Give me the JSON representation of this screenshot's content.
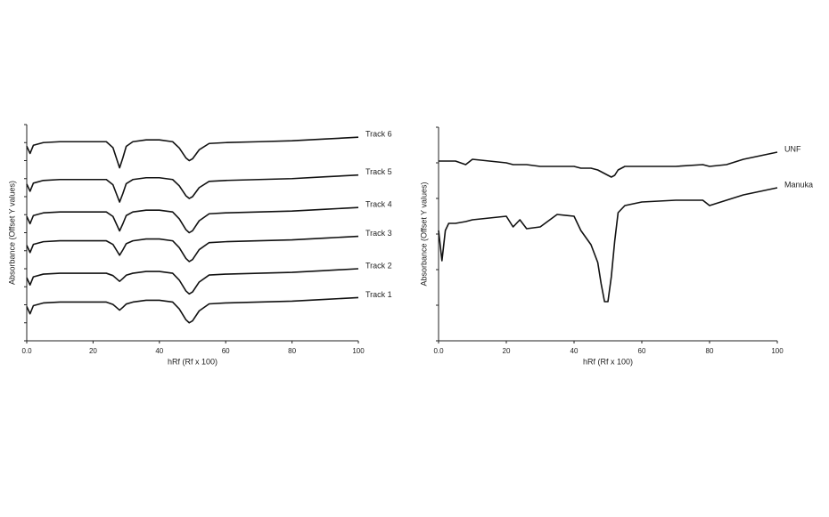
{
  "chart_data": [
    {
      "type": "line",
      "y_label": "Absorbance (Offset Y values)",
      "x_label": "hRf (Rf x 100)",
      "x": [
        0,
        1,
        2,
        5,
        10,
        15,
        20,
        24,
        26,
        27,
        28,
        29,
        30,
        32,
        36,
        40,
        44,
        46,
        48,
        49,
        50,
        52,
        55,
        60,
        70,
        80,
        90,
        100
      ],
      "xlim": [
        0,
        100
      ],
      "xticks": [
        {
          "value": 0,
          "label": "0.0"
        },
        20,
        40,
        60,
        80,
        100
      ],
      "ylim": [
        0,
        12
      ],
      "yticks": [
        0,
        1,
        2,
        3,
        4,
        5,
        6,
        7,
        8,
        9,
        10,
        11,
        12
      ],
      "series": [
        {
          "name": "Track 6",
          "color": "#111111",
          "values": [
            10.8,
            10.4,
            10.85,
            11.0,
            11.05,
            11.05,
            11.05,
            11.05,
            10.72,
            10.16,
            9.6,
            10.16,
            10.79,
            11.05,
            11.15,
            11.15,
            11.05,
            10.7,
            10.15,
            10.0,
            10.1,
            10.6,
            10.95,
            11.0,
            11.05,
            11.1,
            11.2,
            11.3
          ]
        },
        {
          "name": "Track 5",
          "color": "#111111",
          "values": [
            8.7,
            8.3,
            8.75,
            8.9,
            8.95,
            8.95,
            8.95,
            8.95,
            8.66,
            8.18,
            7.7,
            8.18,
            8.72,
            8.95,
            9.05,
            9.05,
            8.95,
            8.6,
            8.05,
            7.9,
            8.0,
            8.5,
            8.85,
            8.9,
            8.95,
            9.0,
            9.1,
            9.2
          ]
        },
        {
          "name": "Track 4",
          "color": "#111111",
          "values": [
            6.9,
            6.5,
            6.95,
            7.1,
            7.15,
            7.15,
            7.15,
            7.15,
            6.9,
            6.5,
            6.1,
            6.5,
            6.95,
            7.15,
            7.25,
            7.25,
            7.15,
            6.77,
            6.17,
            6.0,
            6.11,
            6.66,
            7.05,
            7.1,
            7.15,
            7.2,
            7.3,
            7.4
          ]
        },
        {
          "name": "Track 3",
          "color": "#111111",
          "values": [
            5.3,
            4.9,
            5.35,
            5.5,
            5.55,
            5.55,
            5.55,
            5.55,
            5.35,
            5.05,
            4.75,
            5.05,
            5.39,
            5.55,
            5.65,
            5.65,
            5.55,
            5.17,
            4.57,
            4.4,
            4.51,
            5.06,
            5.45,
            5.5,
            5.55,
            5.6,
            5.7,
            5.8
          ]
        },
        {
          "name": "Track 2",
          "color": "#111111",
          "values": [
            3.5,
            3.1,
            3.55,
            3.7,
            3.75,
            3.75,
            3.75,
            3.75,
            3.62,
            3.46,
            3.3,
            3.46,
            3.64,
            3.75,
            3.85,
            3.85,
            3.75,
            3.37,
            2.77,
            2.6,
            2.71,
            3.26,
            3.65,
            3.7,
            3.75,
            3.8,
            3.9,
            4.0
          ]
        },
        {
          "name": "Track 1",
          "color": "#111111",
          "values": [
            1.9,
            1.5,
            1.95,
            2.1,
            2.15,
            2.15,
            2.15,
            2.15,
            2.02,
            1.86,
            1.7,
            1.86,
            2.04,
            2.15,
            2.25,
            2.25,
            2.15,
            1.77,
            1.17,
            1.0,
            1.11,
            1.66,
            2.05,
            2.1,
            2.15,
            2.2,
            2.3,
            2.4
          ]
        }
      ]
    },
    {
      "type": "line",
      "y_label": "Absorbance (Offset Y values)",
      "x_label": "hRf (Rf x 100)",
      "x": [
        0,
        1,
        2,
        3,
        5,
        8,
        10,
        15,
        20,
        22,
        24,
        26,
        30,
        35,
        40,
        42,
        45,
        47,
        48,
        49,
        50,
        51,
        52,
        53,
        55,
        60,
        70,
        78,
        80,
        85,
        90,
        100
      ],
      "xlim": [
        0,
        100
      ],
      "xticks": [
        {
          "value": 0,
          "label": "0.0"
        },
        20,
        40,
        60,
        80,
        100
      ],
      "ylim": [
        0,
        6
      ],
      "yticks": [
        0,
        1,
        2,
        3,
        4,
        5,
        6
      ],
      "series": [
        {
          "name": "UNF",
          "color": "#111111",
          "values": [
            5.05,
            5.05,
            5.05,
            5.05,
            5.05,
            4.95,
            5.1,
            5.05,
            5.0,
            4.95,
            4.95,
            4.95,
            4.9,
            4.9,
            4.9,
            4.85,
            4.85,
            4.8,
            4.75,
            4.7,
            4.65,
            4.6,
            4.65,
            4.8,
            4.9,
            4.9,
            4.9,
            4.95,
            4.9,
            4.95,
            5.1,
            5.3
          ]
        },
        {
          "name": "Manuka",
          "color": "#111111",
          "values": [
            3.1,
            2.25,
            3.1,
            3.3,
            3.3,
            3.35,
            3.4,
            3.45,
            3.5,
            3.2,
            3.4,
            3.15,
            3.2,
            3.55,
            3.5,
            3.1,
            2.7,
            2.2,
            1.6,
            1.1,
            1.1,
            1.8,
            2.8,
            3.6,
            3.8,
            3.9,
            3.95,
            3.95,
            3.8,
            3.95,
            4.1,
            4.3
          ]
        }
      ]
    }
  ]
}
